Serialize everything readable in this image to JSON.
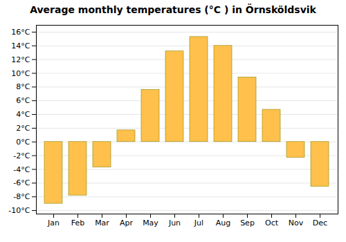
{
  "chart_data": {
    "type": "bar",
    "title": "Average monthly temperatures (°C ) in Örnsköldsvik",
    "categories": [
      "Jan",
      "Feb",
      "Mar",
      "Apr",
      "May",
      "Jun",
      "Jul",
      "Aug",
      "Sep",
      "Oct",
      "Nov",
      "Dec"
    ],
    "values": [
      -9.0,
      -7.8,
      -3.7,
      1.7,
      7.6,
      13.2,
      15.3,
      14.0,
      9.4,
      4.7,
      -2.3,
      -6.5
    ],
    "color": "#FFC04C",
    "ylim": [
      -10.5,
      17
    ],
    "yticks": [
      {
        "value": -10,
        "label": "-10°C"
      },
      {
        "value": -8,
        "label": "-8°C"
      },
      {
        "value": -6,
        "label": "-6°C"
      },
      {
        "value": -4,
        "label": "-4°C"
      },
      {
        "value": -2,
        "label": "-2°C"
      },
      {
        "value": 0,
        "label": "0°C"
      },
      {
        "value": 2,
        "label": "2°C"
      },
      {
        "value": 4,
        "label": "4°C"
      },
      {
        "value": 6,
        "label": "6°C"
      },
      {
        "value": 8,
        "label": "8°C"
      },
      {
        "value": 10,
        "label": "10°C"
      },
      {
        "value": 12,
        "label": "12°C"
      },
      {
        "value": 14,
        "label": "14°C"
      },
      {
        "value": 16,
        "label": "16°C"
      }
    ],
    "grid": true
  }
}
